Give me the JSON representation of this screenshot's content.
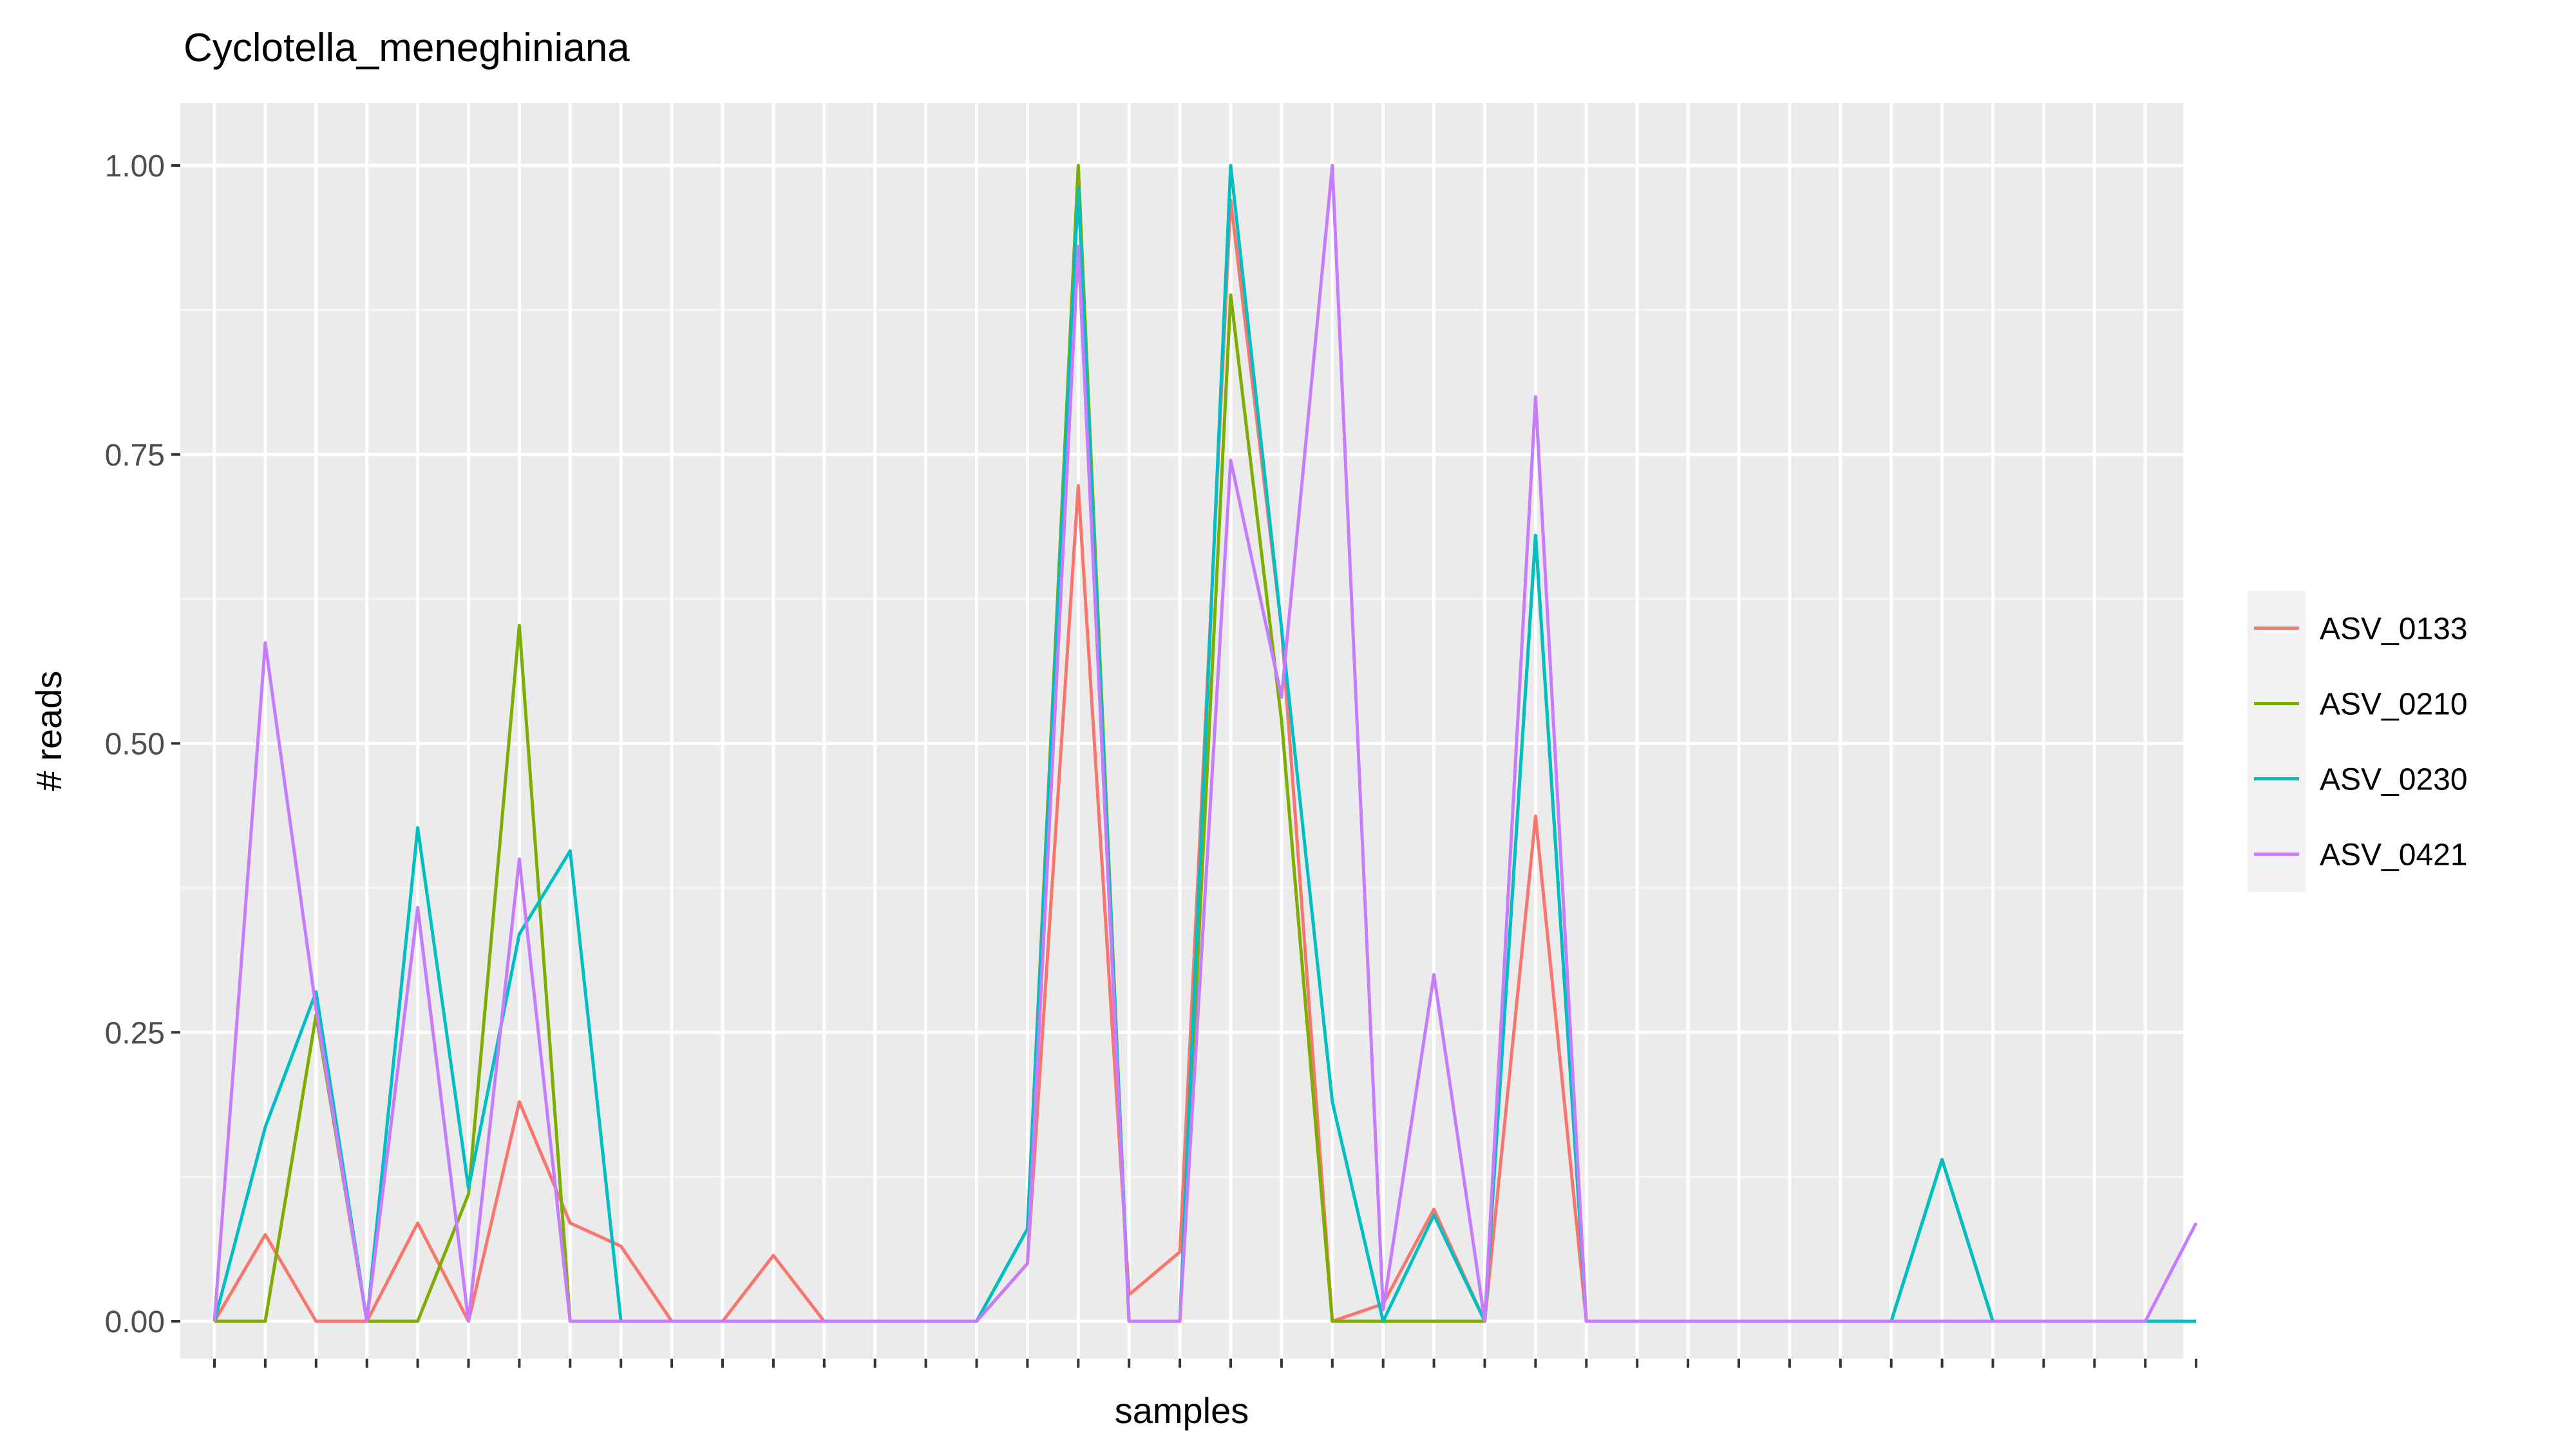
{
  "chart_data": {
    "type": "line",
    "title": "Cyclotella_meneghiniana",
    "xlabel": "samples",
    "ylabel": "# reads",
    "ylim": [
      0,
      1
    ],
    "yticks": [
      "0.00",
      "0.25",
      "0.50",
      "0.75",
      "1.00"
    ],
    "x_count": 40,
    "legend_position": "right",
    "grid": true,
    "series": [
      {
        "name": "ASV_0133",
        "color": "#F8766D",
        "values": [
          0,
          0.075,
          0,
          0,
          0.085,
          0,
          0.19,
          0.085,
          0.065,
          0,
          0,
          0.057,
          0,
          0,
          0,
          0,
          0.05,
          0.723,
          0.023,
          0.06,
          0.97,
          0.6,
          0,
          0.015,
          0.097,
          0,
          0.437,
          0,
          0,
          0,
          0,
          0,
          0,
          0,
          0,
          0,
          0,
          0,
          0,
          0
        ]
      },
      {
        "name": "ASV_0210",
        "color": "#7CAE00",
        "values": [
          0,
          0,
          0.265,
          0,
          0,
          0.11,
          0.602,
          0,
          0,
          0,
          0,
          0,
          0,
          0,
          0,
          0,
          0.08,
          1.0,
          0,
          0,
          0.888,
          0.52,
          0,
          0,
          0,
          0,
          0.68,
          0,
          0,
          0,
          0,
          0,
          0,
          0,
          0.14,
          0,
          0,
          0,
          0,
          0
        ]
      },
      {
        "name": "ASV_0230",
        "color": "#00BFC4",
        "values": [
          0,
          0.168,
          0.285,
          0,
          0.427,
          0.115,
          0.335,
          0.407,
          0,
          0,
          0,
          0,
          0,
          0,
          0,
          0,
          0.08,
          0.98,
          0,
          0,
          1.0,
          0.6,
          0.19,
          0,
          0.092,
          0,
          0.68,
          0,
          0,
          0,
          0,
          0,
          0,
          0,
          0.14,
          0,
          0,
          0,
          0,
          0
        ]
      },
      {
        "name": "ASV_0421",
        "color": "#C77CFF",
        "values": [
          0,
          0.587,
          0.27,
          0,
          0.358,
          0,
          0.4,
          0,
          0,
          0,
          0,
          0,
          0,
          0,
          0,
          0,
          0.05,
          0.93,
          0,
          0,
          0.745,
          0.54,
          1.0,
          0.01,
          0.3,
          0,
          0.8,
          0,
          0,
          0,
          0,
          0,
          0,
          0,
          0,
          0,
          0,
          0,
          0,
          0.085
        ]
      }
    ]
  }
}
